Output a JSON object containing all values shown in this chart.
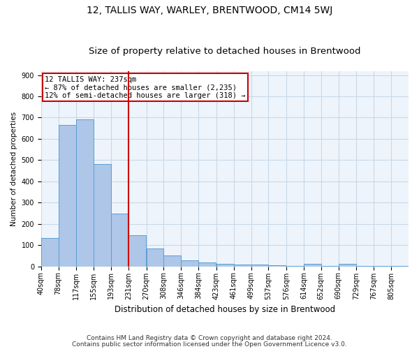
{
  "title1": "12, TALLIS WAY, WARLEY, BRENTWOOD, CM14 5WJ",
  "title2": "Size of property relative to detached houses in Brentwood",
  "xlabel": "Distribution of detached houses by size in Brentwood",
  "ylabel": "Number of detached properties",
  "footer1": "Contains HM Land Registry data © Crown copyright and database right 2024.",
  "footer2": "Contains public sector information licensed under the Open Government Licence v3.0.",
  "annotation_line1": "12 TALLIS WAY: 237sqm",
  "annotation_line2": "← 87% of detached houses are smaller (2,235)",
  "annotation_line3": "12% of semi-detached houses are larger (318) →",
  "red_line_x": 231,
  "categories": [
    "40sqm",
    "78sqm",
    "117sqm",
    "155sqm",
    "193sqm",
    "231sqm",
    "270sqm",
    "308sqm",
    "346sqm",
    "384sqm",
    "423sqm",
    "461sqm",
    "499sqm",
    "537sqm",
    "576sqm",
    "614sqm",
    "652sqm",
    "690sqm",
    "729sqm",
    "767sqm",
    "805sqm"
  ],
  "values": [
    135,
    665,
    693,
    483,
    248,
    148,
    83,
    50,
    27,
    20,
    12,
    10,
    8,
    5,
    3,
    12,
    2,
    12,
    1,
    1,
    1
  ],
  "bar_color": "#aec6e8",
  "bar_edge_color": "#5a9fd4",
  "red_line_color": "#cc0000",
  "grid_color": "#c8d8e8",
  "bg_color": "#eef4fb",
  "ylim": [
    0,
    920
  ],
  "title1_fontsize": 10,
  "title2_fontsize": 9.5,
  "annotation_fontsize": 7.5,
  "xlabel_fontsize": 8.5,
  "ylabel_fontsize": 7.5,
  "tick_fontsize": 7,
  "footer_fontsize": 6.5
}
